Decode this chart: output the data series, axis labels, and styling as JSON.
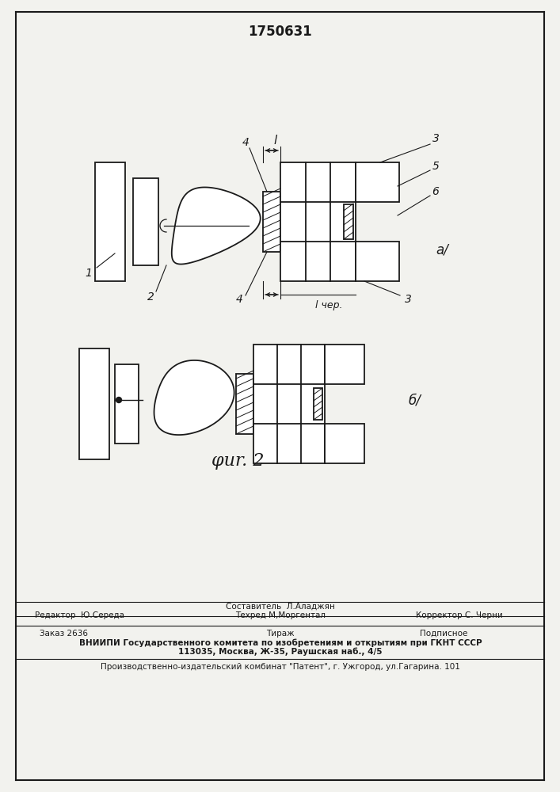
{
  "patent_number": "1750631",
  "background_color": "#f2f2ee",
  "line_color": "#1a1a1a",
  "fig_label_a": "а/",
  "fig_label_b": "б/",
  "fig_caption": "φur. 2",
  "footer_line1_left": "Редактор  Ю.Середа",
  "footer_line1_center_top": "Составитель  Л.Аладжян",
  "footer_line1_center_bot": "Техред М,Моргентал",
  "footer_line1_right": "Корректор С. Черни",
  "footer_line2_left": "Заказ 2636",
  "footer_line2_center": "Тираж",
  "footer_line2_right": "Подписное",
  "footer_line3": "ВНИИПИ Государственного комитета по изобретениям и открытиям при ГКНТ СССР",
  "footer_line4": "113035, Москва, Ж-35, Раушская наб., 4/5",
  "footer_line5": "Производственно-издательский комбинат \"Патент\", г. Ужгород, ул.Гагарина. 101",
  "label_1": "1",
  "label_2": "2",
  "label_3": "3",
  "label_4": "4",
  "label_5": "5",
  "label_6": "6",
  "label_l": "l",
  "label_l_ver": "l чер."
}
